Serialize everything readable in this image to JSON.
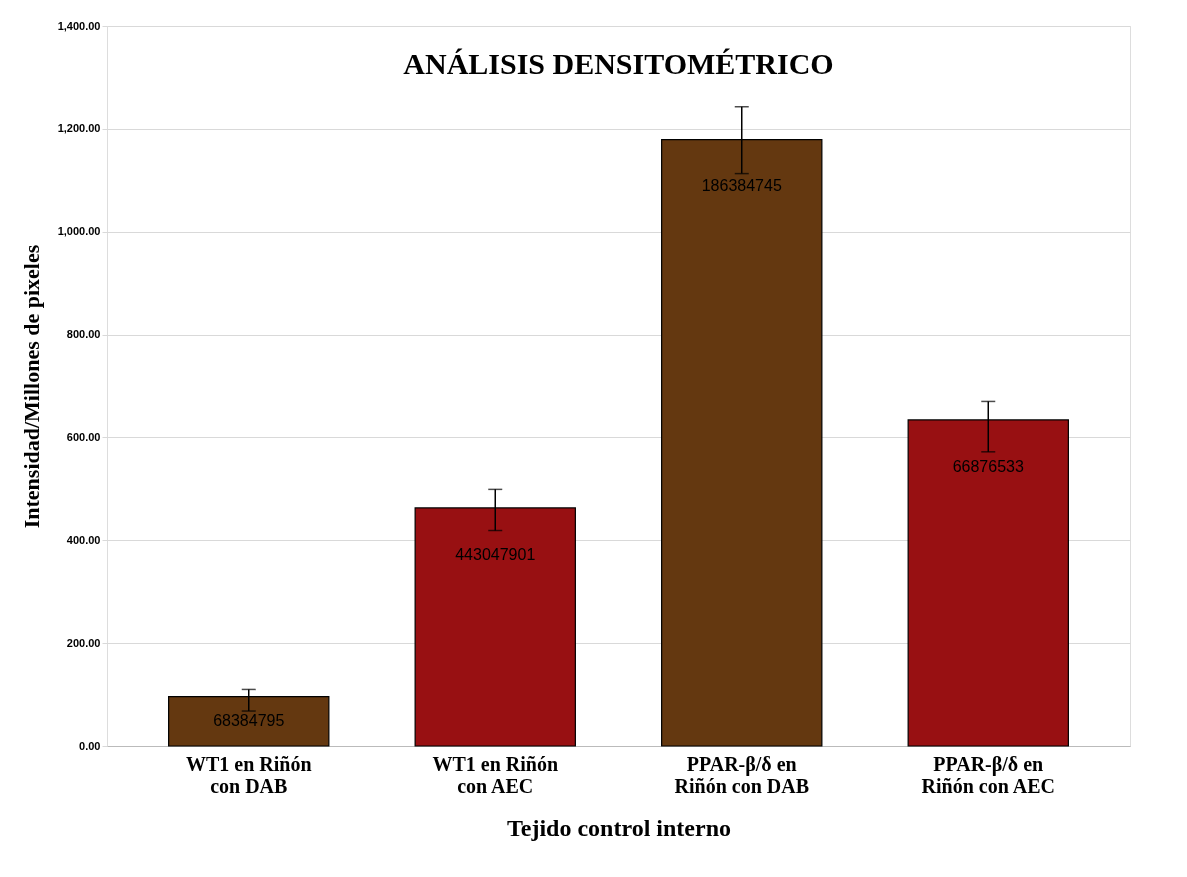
{
  "chart_data": {
    "type": "bar",
    "title": "ANÁLISIS DENSITOMÉTRICO",
    "xlabel": "Tejido control interno",
    "ylabel": "Intensidad/Millones de pixeles",
    "categories": [
      "WT1 en Riñón con DAB",
      "WT1 en Riñón con AEC",
      "PPAR-β/δ en Riñón con DAB",
      "PPAR-β/δ en Riñón con AEC"
    ],
    "values": [
      96,
      463,
      1179,
      634
    ],
    "colors": [
      "#643810",
      "#981012",
      "#643810",
      "#981012"
    ],
    "errors": [
      [
        68,
        110
      ],
      [
        419,
        499
      ],
      [
        1113,
        1243
      ],
      [
        572,
        670
      ]
    ],
    "annotations": [
      "68384795",
      "443047901",
      "186384745",
      "66876533"
    ],
    "ylim": [
      0,
      1400
    ],
    "yticks": [
      {
        "value": 0,
        "label": "0.00"
      },
      {
        "value": 200,
        "label": "200.00"
      },
      {
        "value": 400,
        "label": "400.00"
      },
      {
        "value": 600,
        "label": "600.00"
      },
      {
        "value": 800,
        "label": "800.00"
      },
      {
        "value": 1000,
        "label": "1,000.00"
      },
      {
        "value": 1200,
        "label": "1,200.00"
      },
      {
        "value": 1400,
        "label": "1,400.00"
      }
    ],
    "grid": "y"
  }
}
